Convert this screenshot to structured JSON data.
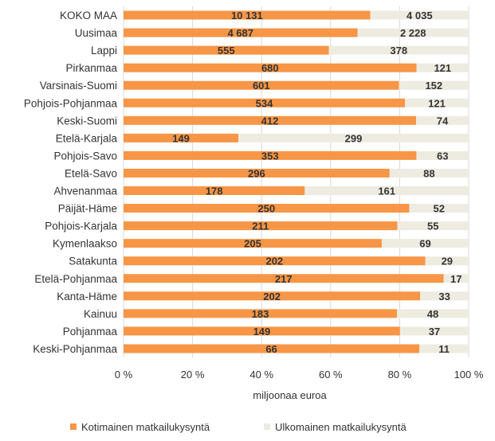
{
  "chart_data": {
    "type": "bar",
    "orientation": "horizontal",
    "stacked": "percent",
    "xlabel": "miljoonaa euroa",
    "xlim": [
      0,
      100
    ],
    "x_ticks": [
      "0 %",
      "20 %",
      "40 %",
      "60 %",
      "80 %",
      "100 %"
    ],
    "grid": true,
    "legend_position": "bottom",
    "categories": [
      "KOKO MAA",
      "Uusimaa",
      "Lappi",
      "Pirkanmaa",
      "Varsinais-Suomi",
      "Pohjois-Pohjanmaa",
      "Keski-Suomi",
      "Etelä-Karjala",
      "Pohjois-Savo",
      "Etelä-Savo",
      "Ahvenanmaa",
      "Päijät-Häme",
      "Pohjois-Karjala",
      "Kymenlaakso",
      "Satakunta",
      "Etelä-Pohjanmaa",
      "Kanta-Häme",
      "Kainuu",
      "Pohjanmaa",
      "Keski-Pohjanmaa"
    ],
    "series": [
      {
        "name": "Kotimainen matkailukysyntä",
        "color": "#f79646",
        "values": [
          10131,
          4687,
          555,
          680,
          601,
          534,
          412,
          149,
          353,
          296,
          178,
          250,
          211,
          205,
          202,
          217,
          202,
          183,
          149,
          66
        ],
        "labels": [
          "10 131",
          "4 687",
          "555",
          "680",
          "601",
          "534",
          "412",
          "149",
          "353",
          "296",
          "178",
          "250",
          "211",
          "205",
          "202",
          "217",
          "202",
          "183",
          "149",
          "66"
        ]
      },
      {
        "name": "Ulkomainen matkailukysyntä",
        "color": "#eeece1",
        "values": [
          4035,
          2228,
          378,
          121,
          152,
          121,
          74,
          299,
          63,
          88,
          161,
          52,
          55,
          69,
          29,
          17,
          33,
          48,
          37,
          11
        ],
        "labels": [
          "4 035",
          "2 228",
          "378",
          "121",
          "152",
          "121",
          "74",
          "299",
          "63",
          "88",
          "161",
          "52",
          "55",
          "69",
          "29",
          "17",
          "33",
          "48",
          "37",
          "11"
        ]
      }
    ]
  }
}
